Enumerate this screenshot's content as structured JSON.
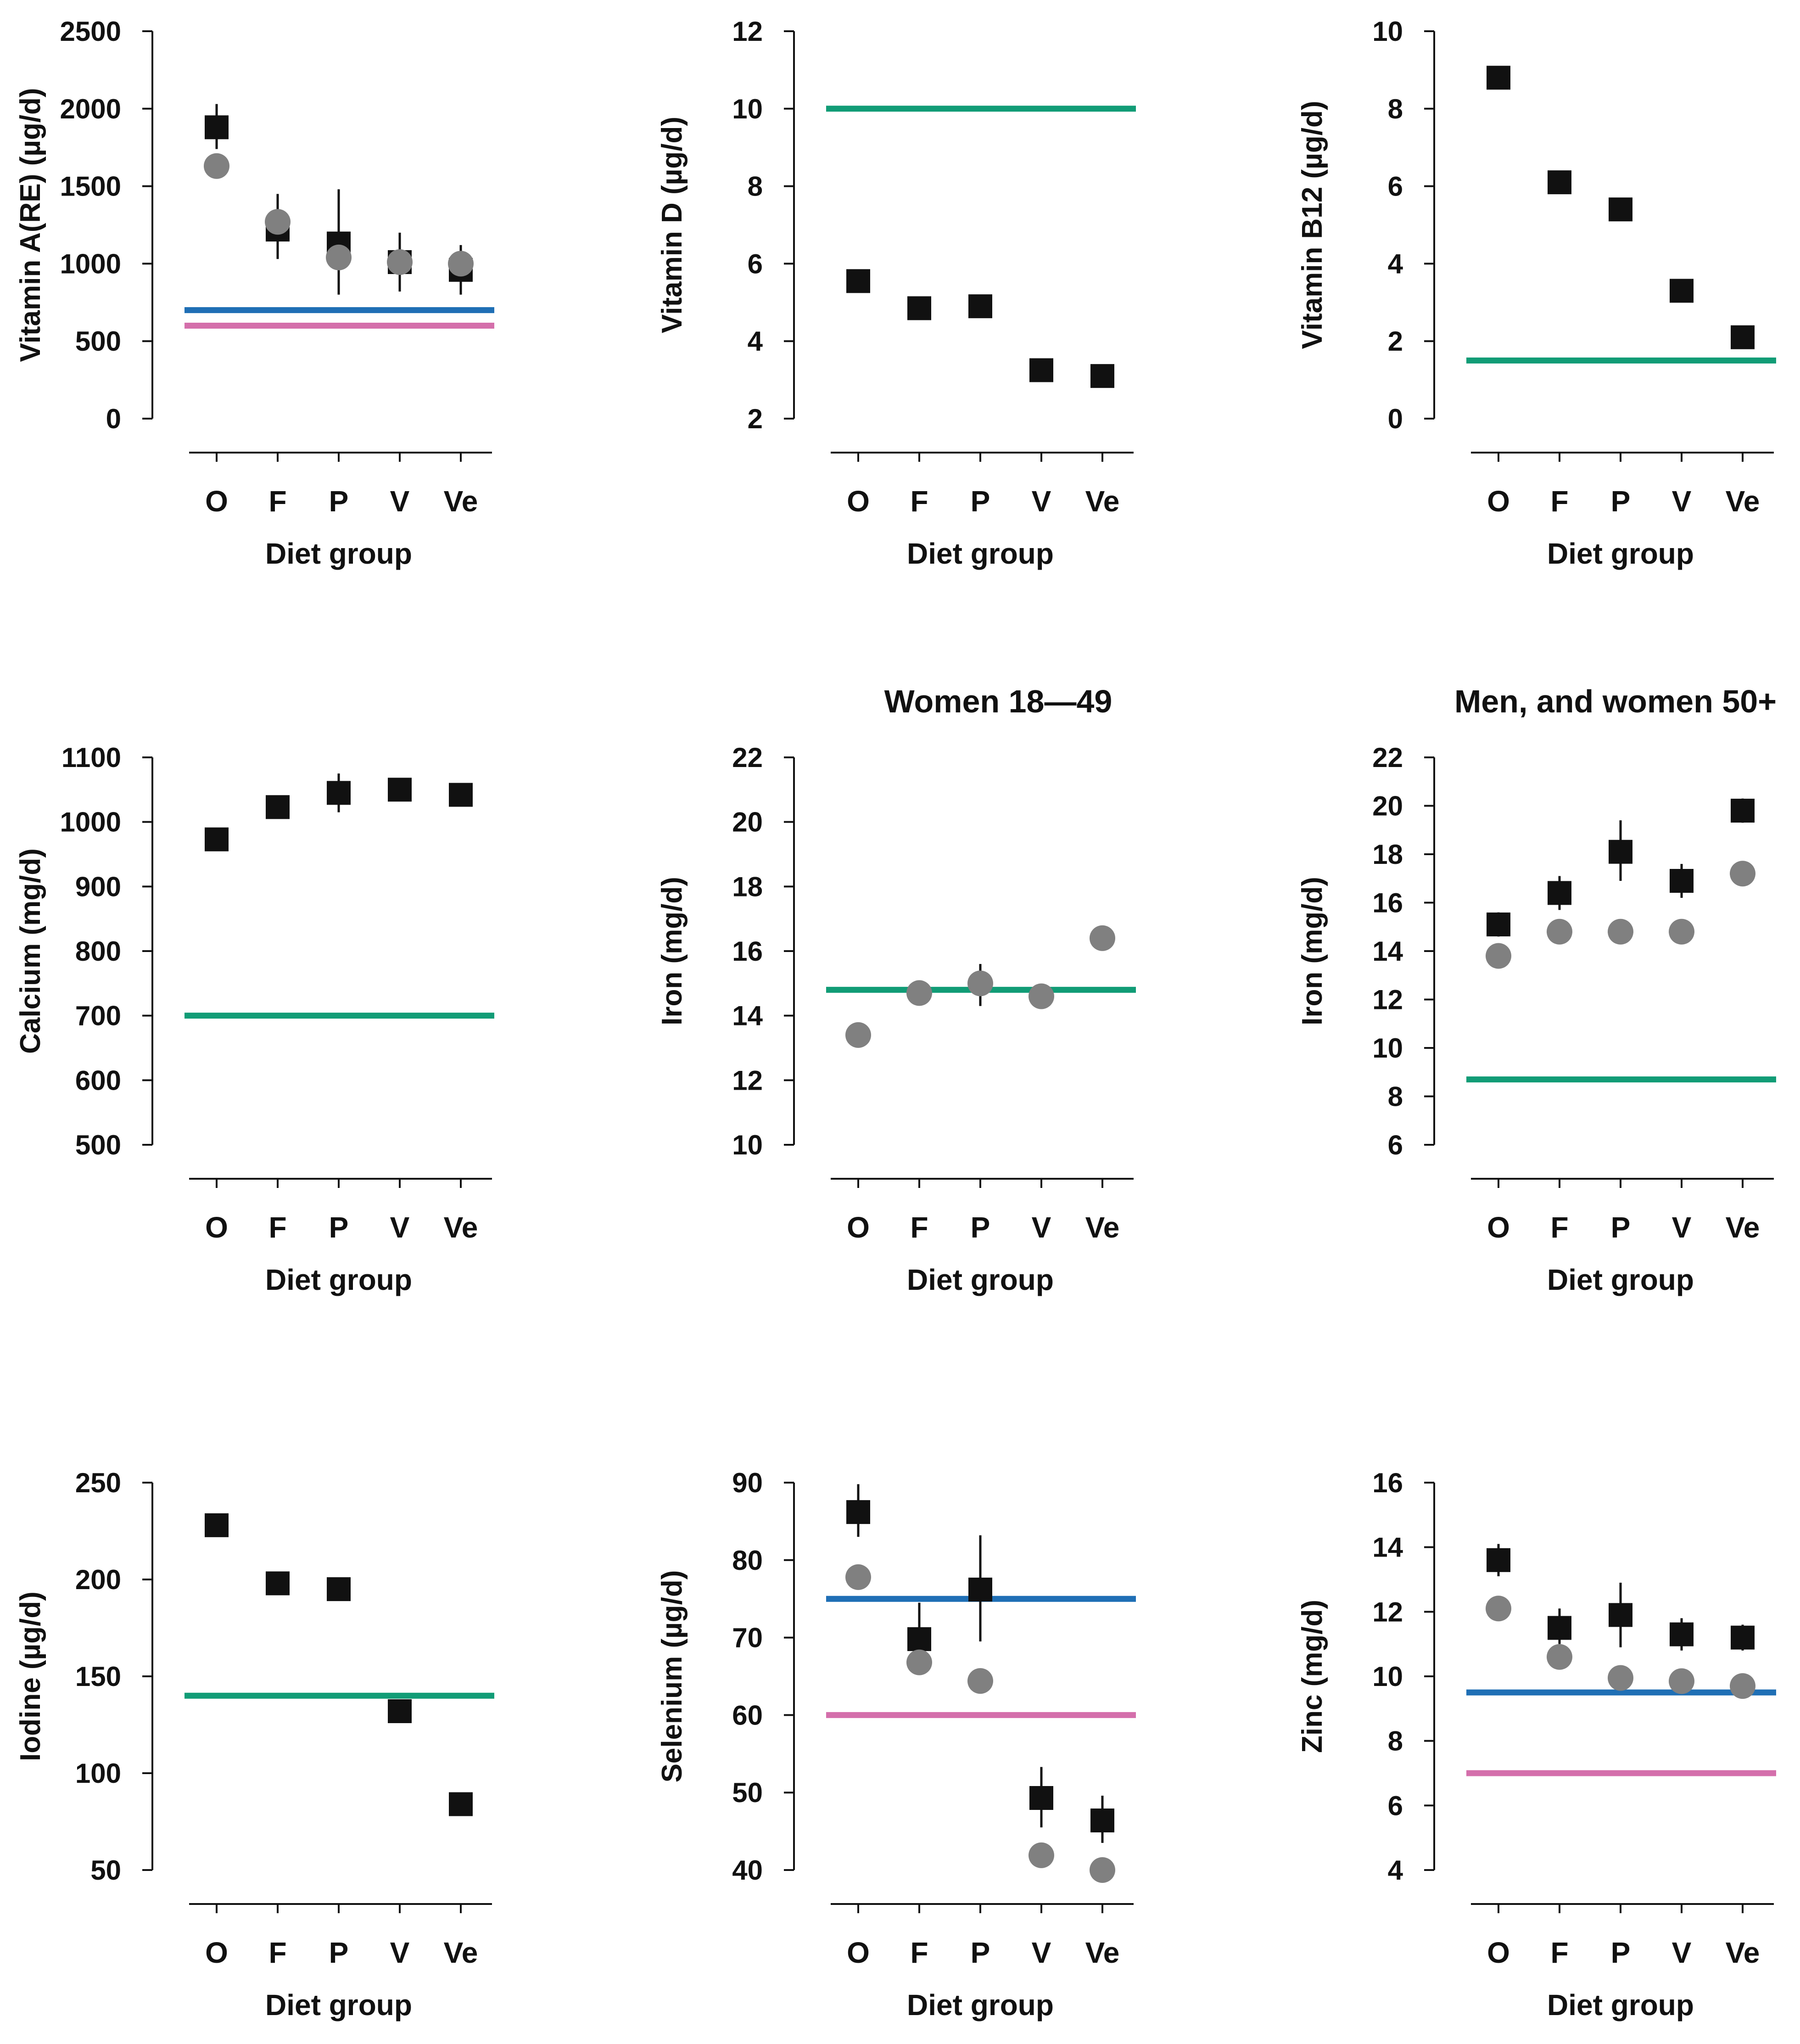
{
  "legend_colors": {
    "square_series": "#111111",
    "circle_series": "#808080",
    "ref_blue": "#1f6fb5",
    "ref_pink": "#d46fab",
    "ref_green": "#119c76"
  },
  "chart_data": [
    {
      "type": "scatter",
      "title": "",
      "xlabel": "Diet group",
      "ylabel": "Vitamin A(RE) (µg/d)",
      "categories": [
        "O",
        "F",
        "P",
        "V",
        "Ve"
      ],
      "ylim": [
        0,
        2500
      ],
      "yticks": [
        0,
        500,
        1000,
        1500,
        2000,
        2500
      ],
      "series": [
        {
          "name": "squares",
          "marker": "square",
          "color": "#111111",
          "values": [
            1880,
            1220,
            1130,
            1010,
            960
          ],
          "err_low": [
            1740,
            1030,
            800,
            820,
            800
          ],
          "err_high": [
            2030,
            1450,
            1480,
            1200,
            1120
          ]
        },
        {
          "name": "circles",
          "marker": "circle",
          "color": "#808080",
          "values": [
            1630,
            1270,
            1040,
            1010,
            1000
          ]
        }
      ],
      "reference_lines": [
        {
          "value": 700,
          "color": "#1f6fb5"
        },
        {
          "value": 600,
          "color": "#d46fab"
        }
      ]
    },
    {
      "type": "scatter",
      "title": "",
      "xlabel": "Diet group",
      "ylabel": "Vitamin D (µg/d)",
      "categories": [
        "O",
        "F",
        "P",
        "V",
        "Ve"
      ],
      "ylim": [
        2,
        12
      ],
      "yticks": [
        2,
        4,
        6,
        8,
        10,
        12
      ],
      "series": [
        {
          "name": "squares",
          "marker": "square",
          "color": "#111111",
          "values": [
            5.55,
            4.85,
            4.9,
            3.25,
            3.1
          ]
        }
      ],
      "reference_lines": [
        {
          "value": 10,
          "color": "#119c76"
        }
      ]
    },
    {
      "type": "scatter",
      "title": "",
      "xlabel": "Diet group",
      "ylabel": "Vitamin B12 (µg/d)",
      "categories": [
        "O",
        "F",
        "P",
        "V",
        "Ve"
      ],
      "ylim": [
        0,
        10
      ],
      "yticks": [
        0,
        2,
        4,
        6,
        8,
        10
      ],
      "series": [
        {
          "name": "squares",
          "marker": "square",
          "color": "#111111",
          "values": [
            8.8,
            6.1,
            5.4,
            3.3,
            2.1
          ]
        }
      ],
      "reference_lines": [
        {
          "value": 1.5,
          "color": "#119c76"
        }
      ]
    },
    {
      "type": "scatter",
      "title": "",
      "xlabel": "Diet group",
      "ylabel": "Calcium (mg/d)",
      "categories": [
        "O",
        "F",
        "P",
        "V",
        "Ve"
      ],
      "ylim": [
        500,
        1100
      ],
      "yticks": [
        500,
        600,
        700,
        800,
        900,
        1000,
        1100
      ],
      "series": [
        {
          "name": "squares",
          "marker": "square",
          "color": "#111111",
          "values": [
            973,
            1023,
            1045,
            1050,
            1042
          ],
          "err_low": [
            965,
            1010,
            1015,
            1040,
            1030
          ],
          "err_high": [
            980,
            1035,
            1075,
            1060,
            1055
          ]
        }
      ],
      "reference_lines": [
        {
          "value": 700,
          "color": "#119c76"
        }
      ]
    },
    {
      "type": "scatter",
      "title": "Women 18—49",
      "xlabel": "Diet group",
      "ylabel": "Iron (mg/d)",
      "categories": [
        "O",
        "F",
        "P",
        "V",
        "Ve"
      ],
      "ylim": [
        10,
        22
      ],
      "yticks": [
        10,
        12,
        14,
        16,
        18,
        20,
        22
      ],
      "series": [
        {
          "name": "circles",
          "marker": "circle",
          "color": "#808080",
          "values": [
            13.4,
            14.7,
            15.0,
            14.6,
            16.4
          ],
          "err_low": [
            13.3,
            14.5,
            14.3,
            14.3,
            16.3
          ],
          "err_high": [
            13.5,
            14.9,
            15.6,
            14.9,
            16.5
          ]
        }
      ],
      "reference_lines": [
        {
          "value": 14.8,
          "color": "#119c76"
        }
      ]
    },
    {
      "type": "scatter",
      "title": "Men, and women 50+",
      "xlabel": "Diet group",
      "ylabel": "Iron (mg/d)",
      "categories": [
        "O",
        "F",
        "P",
        "V",
        "Ve"
      ],
      "ylim": [
        6,
        22
      ],
      "yticks": [
        6,
        8,
        10,
        12,
        14,
        16,
        18,
        20,
        22
      ],
      "series": [
        {
          "name": "squares",
          "marker": "square",
          "color": "#111111",
          "values": [
            15.1,
            16.4,
            18.1,
            16.9,
            19.8
          ],
          "err_low": [
            14.6,
            15.7,
            16.9,
            16.2,
            19.3
          ],
          "err_high": [
            15.6,
            17.1,
            19.4,
            17.6,
            20.3
          ]
        },
        {
          "name": "circles",
          "marker": "circle",
          "color": "#808080",
          "values": [
            13.8,
            14.8,
            14.8,
            14.8,
            17.2
          ]
        }
      ],
      "reference_lines": [
        {
          "value": 8.7,
          "color": "#119c76"
        }
      ]
    },
    {
      "type": "scatter",
      "title": "",
      "xlabel": "Diet group",
      "ylabel": "Iodine (µg/d)",
      "categories": [
        "O",
        "F",
        "P",
        "V",
        "Ve"
      ],
      "ylim": [
        50,
        250
      ],
      "yticks": [
        50,
        100,
        150,
        200,
        250
      ],
      "series": [
        {
          "name": "squares",
          "marker": "square",
          "color": "#111111",
          "values": [
            228,
            198,
            195,
            132,
            84
          ]
        }
      ],
      "reference_lines": [
        {
          "value": 140,
          "color": "#119c76"
        }
      ]
    },
    {
      "type": "scatter",
      "title": "",
      "xlabel": "Diet group",
      "ylabel": "Selenium (µg/d)",
      "categories": [
        "O",
        "F",
        "P",
        "V",
        "Ve"
      ],
      "ylim": [
        40,
        90
      ],
      "yticks": [
        40,
        50,
        60,
        70,
        80,
        90
      ],
      "series": [
        {
          "name": "squares",
          "marker": "square",
          "color": "#111111",
          "values": [
            86.2,
            69.8,
            76.2,
            49.3,
            46.4
          ],
          "err_low": [
            83.0,
            66.0,
            69.5,
            45.5,
            43.5
          ],
          "err_high": [
            89.8,
            74.5,
            83.2,
            53.3,
            49.6
          ]
        },
        {
          "name": "circles",
          "marker": "circle",
          "color": "#808080",
          "values": [
            77.8,
            66.8,
            64.4,
            41.9,
            40.0
          ]
        }
      ],
      "reference_lines": [
        {
          "value": 75,
          "color": "#1f6fb5"
        },
        {
          "value": 60,
          "color": "#d46fab"
        }
      ]
    },
    {
      "type": "scatter",
      "title": "",
      "xlabel": "Diet group",
      "ylabel": "Zinc (mg/d)",
      "categories": [
        "O",
        "F",
        "P",
        "V",
        "Ve"
      ],
      "ylim": [
        4,
        16
      ],
      "yticks": [
        4,
        6,
        8,
        10,
        12,
        14,
        16
      ],
      "series": [
        {
          "name": "squares",
          "marker": "square",
          "color": "#111111",
          "values": [
            13.6,
            11.5,
            11.9,
            11.3,
            11.2
          ],
          "err_low": [
            13.1,
            11.0,
            10.9,
            10.8,
            10.8
          ],
          "err_high": [
            14.1,
            12.1,
            12.9,
            11.8,
            11.6
          ]
        },
        {
          "name": "circles",
          "marker": "circle",
          "color": "#808080",
          "values": [
            12.1,
            10.6,
            9.95,
            9.85,
            9.7
          ]
        }
      ],
      "reference_lines": [
        {
          "value": 9.5,
          "color": "#1f6fb5"
        },
        {
          "value": 7.0,
          "color": "#d46fab"
        }
      ]
    }
  ]
}
